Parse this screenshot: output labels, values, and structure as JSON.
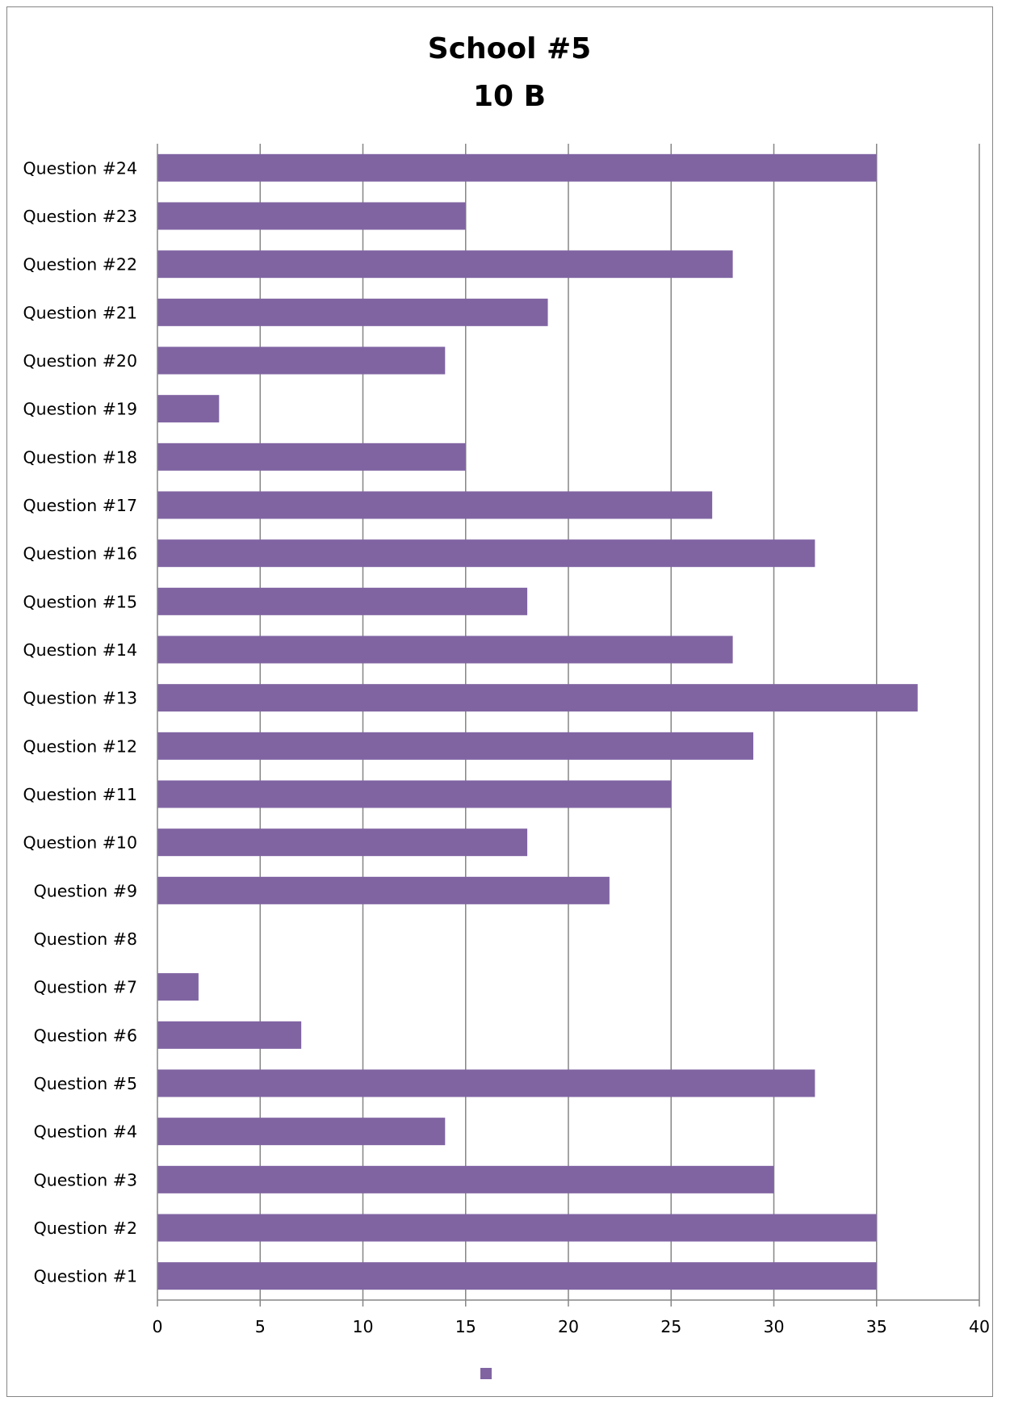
{
  "chart_data": {
    "type": "bar",
    "orientation": "horizontal",
    "title": [
      "School #5",
      "10 B"
    ],
    "categories": [
      "Question #1",
      "Question #2",
      "Question #3",
      "Question #4",
      "Question #5",
      "Question #6",
      "Question #7",
      "Question #8",
      "Question #9",
      "Question #10",
      "Question #11",
      "Question #12",
      "Question #13",
      "Question #14",
      "Question #15",
      "Question #16",
      "Question #17",
      "Question #18",
      "Question #19",
      "Question #20",
      "Question #21",
      "Question #22",
      "Question #23",
      "Question #24"
    ],
    "values": [
      35,
      35,
      30,
      14,
      32,
      7,
      2,
      0,
      22,
      18,
      25,
      29,
      37,
      28,
      18,
      32,
      27,
      15,
      3,
      14,
      19,
      28,
      15,
      35
    ],
    "xlim": [
      0,
      40
    ],
    "xticks": [
      0,
      5,
      10,
      15,
      20,
      25,
      30,
      35,
      40
    ],
    "grid": true,
    "legend": {
      "placement": "bottom",
      "entries": [
        ""
      ]
    },
    "colors": {
      "bar": "#8064A2",
      "grid": "#868686",
      "axis": "#868686"
    }
  }
}
